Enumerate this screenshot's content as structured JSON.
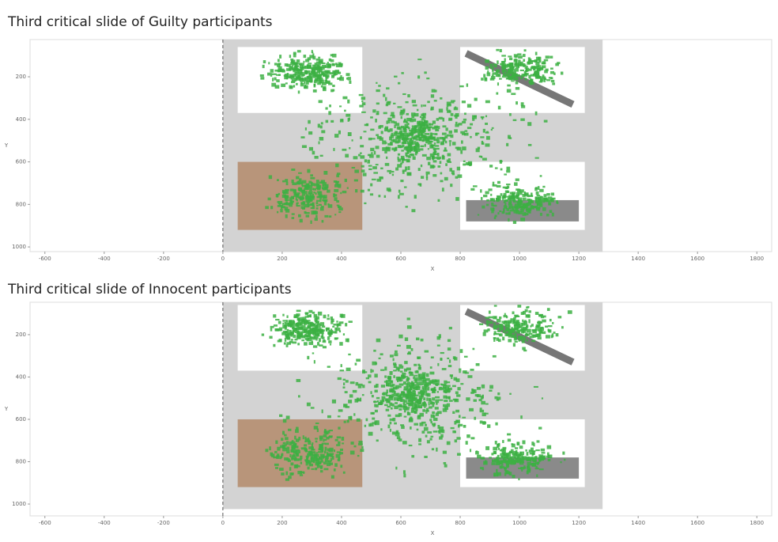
{
  "chart_data": [
    {
      "type": "scatter",
      "title": "Third critical slide of Guilty participants",
      "x_label": "X",
      "y_label": "Y",
      "xlim": [
        -650,
        1850
      ],
      "xticks": [
        -600,
        -400,
        -200,
        0,
        200,
        400,
        600,
        800,
        1000,
        1200,
        1400,
        1600,
        1800
      ],
      "ylim": [
        1022,
        25
      ],
      "yticks": [
        200,
        400,
        600,
        800,
        1000
      ],
      "color": "#3cb043"
    },
    {
      "type": "scatter",
      "title": "Third critical slide of Innocent participants",
      "x_label": "X",
      "y_label": "Y",
      "xlim": [
        -650,
        1850
      ],
      "xticks": [
        -600,
        -400,
        -200,
        0,
        200,
        400,
        600,
        800,
        1000,
        1200,
        1400,
        1600,
        1800
      ],
      "ylim": [
        1056,
        47
      ],
      "yticks": [
        200,
        400,
        600,
        800,
        1000
      ],
      "color": "#3cb043"
    }
  ]
}
